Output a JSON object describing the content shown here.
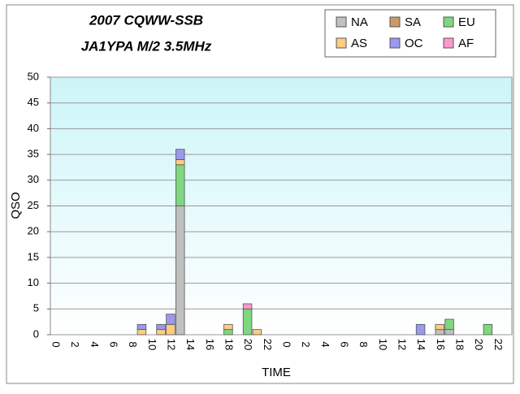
{
  "chart_data": {
    "type": "bar",
    "stacked": true,
    "title": "2007 CQWW-SSB",
    "subtitle": "JA1YPA  M/2  3.5MHz",
    "x_label": "TIME",
    "y_label": "QSO",
    "categories": [
      "0",
      null,
      "2",
      null,
      "4",
      null,
      "6",
      null,
      "8",
      null,
      "10",
      null,
      "12",
      null,
      "14",
      null,
      "16",
      null,
      "18",
      null,
      "20",
      null,
      "22",
      null,
      "0",
      null,
      "2",
      null,
      "4",
      null,
      "6",
      null,
      "8",
      null,
      "10",
      null,
      "12",
      null,
      "14",
      null,
      "16",
      null,
      "18",
      null,
      "20",
      null,
      "22",
      null
    ],
    "series": [
      {
        "name": "NA",
        "color": "#c0c0c0",
        "values": [
          0,
          0,
          0,
          0,
          0,
          0,
          0,
          0,
          0,
          0,
          0,
          0,
          0,
          25,
          0,
          0,
          0,
          0,
          0,
          0,
          0,
          0,
          0,
          0,
          0,
          0,
          0,
          0,
          0,
          0,
          0,
          0,
          0,
          0,
          0,
          0,
          0,
          0,
          0,
          0,
          1,
          1,
          0,
          0,
          0,
          0,
          0,
          0
        ]
      },
      {
        "name": "SA",
        "color": "#cc9966",
        "values": [
          0,
          0,
          0,
          0,
          0,
          0,
          0,
          0,
          0,
          0,
          0,
          0,
          0,
          0,
          0,
          0,
          0,
          0,
          0,
          0,
          0,
          0,
          0,
          0,
          0,
          0,
          0,
          0,
          0,
          0,
          0,
          0,
          0,
          0,
          0,
          0,
          0,
          0,
          0,
          0,
          0,
          0,
          0,
          0,
          0,
          0,
          0,
          0
        ]
      },
      {
        "name": "EU",
        "color": "#7fd77f",
        "values": [
          0,
          0,
          0,
          0,
          0,
          0,
          0,
          0,
          0,
          0,
          0,
          0,
          0,
          8,
          0,
          0,
          0,
          0,
          1,
          0,
          5,
          0,
          0,
          0,
          0,
          0,
          0,
          0,
          0,
          0,
          0,
          0,
          0,
          0,
          0,
          0,
          0,
          0,
          0,
          0,
          0,
          2,
          0,
          0,
          0,
          2,
          0,
          0
        ]
      },
      {
        "name": "AS",
        "color": "#ffcc80",
        "values": [
          0,
          0,
          0,
          0,
          0,
          0,
          0,
          0,
          0,
          1,
          0,
          1,
          2,
          1,
          0,
          0,
          0,
          0,
          1,
          0,
          0,
          1,
          0,
          0,
          0,
          0,
          0,
          0,
          0,
          0,
          0,
          0,
          0,
          0,
          0,
          0,
          0,
          0,
          0,
          0,
          1,
          0,
          0,
          0,
          0,
          0,
          0,
          0
        ]
      },
      {
        "name": "OC",
        "color": "#9999ee",
        "values": [
          0,
          0,
          0,
          0,
          0,
          0,
          0,
          0,
          0,
          1,
          0,
          1,
          2,
          2,
          0,
          0,
          0,
          0,
          0,
          0,
          0,
          0,
          0,
          0,
          0,
          0,
          0,
          0,
          0,
          0,
          0,
          0,
          0,
          0,
          0,
          0,
          0,
          0,
          2,
          0,
          0,
          0,
          0,
          0,
          0,
          0,
          0,
          0
        ]
      },
      {
        "name": "AF",
        "color": "#ff99cc",
        "values": [
          0,
          0,
          0,
          0,
          0,
          0,
          0,
          0,
          0,
          0,
          0,
          0,
          0,
          0,
          0,
          0,
          0,
          0,
          0,
          0,
          1,
          0,
          0,
          0,
          0,
          0,
          0,
          0,
          0,
          0,
          0,
          0,
          0,
          0,
          0,
          0,
          0,
          0,
          0,
          0,
          0,
          0,
          0,
          0,
          0,
          0,
          0,
          0
        ]
      }
    ],
    "ylim": [
      0,
      50
    ],
    "yticks": [
      0,
      5,
      10,
      15,
      20,
      25,
      30,
      35,
      40,
      45,
      50
    ],
    "grid": true,
    "legend": "top-right"
  }
}
